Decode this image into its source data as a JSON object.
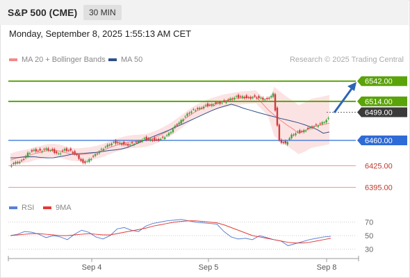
{
  "header": {
    "instrument": "S&P 500 (CME)",
    "timeframe": "30 MIN",
    "datetime": "Monday, September 8, 2025 1:55:13 AM CET"
  },
  "legend": {
    "ma20_bb": "MA 20 + Bollinger Bands",
    "ma50": "MA 50",
    "credit": "Research © 2025 Trading Central"
  },
  "rsi_legend": {
    "rsi": "RSI",
    "ma9": "9MA"
  },
  "colors": {
    "resistance": "#5ba30a",
    "support": "#2f6bd6",
    "target": "#e05252",
    "current": "#3a3a3a",
    "arrow": "#2c64b8",
    "bb_fill": "#fbd9d9",
    "ma20": "#f08a8a",
    "ma50": "#2f4f8a",
    "rsi": "#5b7fd6",
    "rsi_ma": "#e53935",
    "candle_up": "#3aa33a",
    "candle_down": "#d23b3b"
  },
  "chart_data": [
    {
      "type": "candlestick",
      "title": "S&P 500 (CME)",
      "x_ticks": [
        "Sep 4",
        "Sep 5",
        "Sep 8"
      ],
      "levels": [
        {
          "label": "6542.00",
          "value": 6542.0,
          "kind": "resistance"
        },
        {
          "label": "6514.00",
          "value": 6514.0,
          "kind": "resistance"
        },
        {
          "label": "6499.00",
          "value": 6499.0,
          "kind": "current"
        },
        {
          "label": "6460.00",
          "value": 6460.0,
          "kind": "support"
        },
        {
          "label": "6425.00",
          "value": 6425.0,
          "kind": "target"
        },
        {
          "label": "6395.00",
          "value": 6395.0,
          "kind": "target"
        }
      ],
      "price_path": [
        6426,
        6430,
        6432,
        6443,
        6447,
        6446,
        6449,
        6446,
        6442,
        6448,
        6446,
        6440,
        6429,
        6434,
        6441,
        6448,
        6454,
        6458,
        6457,
        6454,
        6456,
        6459,
        6463,
        6462,
        6461,
        6464,
        6470,
        6480,
        6488,
        6497,
        6503,
        6505,
        6509,
        6510,
        6512,
        6514,
        6518,
        6521,
        6521,
        6519,
        6521,
        6519,
        6517,
        6525,
        6460,
        6456,
        6468,
        6472,
        6474,
        6478,
        6481,
        6485,
        6491
      ],
      "ylim": [
        6385,
        6560
      ]
    },
    {
      "type": "line",
      "title": "RSI",
      "series": [
        {
          "name": "RSI",
          "values": [
            50,
            52,
            56,
            55,
            52,
            47,
            50,
            48,
            44,
            52,
            58,
            55,
            48,
            45,
            50,
            60,
            62,
            58,
            56,
            64,
            68,
            70,
            72,
            73,
            74,
            72,
            70,
            69,
            68,
            67,
            56,
            48,
            45,
            46,
            44,
            50,
            47,
            44,
            42,
            35,
            38,
            41,
            44,
            46,
            48,
            49
          ]
        },
        {
          "name": "9MA",
          "values": [
            50,
            51,
            52,
            53,
            53,
            52,
            51,
            50,
            50,
            51,
            52,
            53,
            52,
            51,
            51,
            53,
            55,
            57,
            59,
            61,
            64,
            66,
            68,
            70,
            71,
            72,
            72,
            71,
            70,
            69,
            66,
            62,
            58,
            54,
            50,
            48,
            46,
            44,
            42,
            40,
            39,
            39,
            40,
            42,
            44,
            46
          ]
        }
      ],
      "y_ticks": [
        70,
        50,
        30
      ],
      "ylim": [
        18,
        82
      ]
    }
  ]
}
